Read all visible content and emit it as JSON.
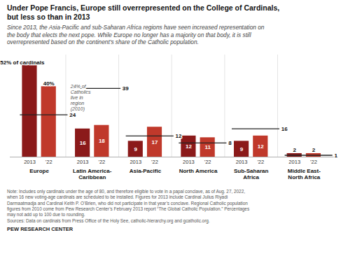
{
  "chart_data": {
    "type": "bar",
    "title": "Under Pope Francis, Europe still overrepresented on the College of Cardinals,\nbut less so than in 2013",
    "subtitle": "Since 2013, the Asia-Pacific and sub-Saharan Africa regions have seen increased representation on\nthe body that elects the next pope. While Europe no longer has a majority on that body, it is still\noverrepresented based on the continent’s share of the Catholic population.",
    "categories": [
      "Europe",
      "Latin America-\nCaribbean",
      "Asia-Pacific",
      "North America",
      "Sub-Saharan\nAfrica",
      "Middle East-\nNorth Africa"
    ],
    "series": [
      {
        "name": "2013",
        "color": "#8b1a1a",
        "values": [
          52,
          16,
          9,
          12,
          9,
          2
        ],
        "value_labels": [
          "52% of cardinals",
          "16",
          "9",
          "12",
          "9",
          "2"
        ]
      },
      {
        "name": "'22",
        "color": "#c0392b",
        "values": [
          40,
          18,
          17,
          11,
          12,
          2
        ],
        "value_labels": [
          "40%",
          "18",
          "17",
          "11",
          "12",
          "2"
        ]
      }
    ],
    "reference_lines": {
      "color": "#222222",
      "values": [
        24,
        39,
        12,
        8,
        16,
        1
      ]
    },
    "annotations": [
      {
        "category": "Europe",
        "text": "24% of\nCatholics\nlive in\nregion\n(2010)"
      }
    ],
    "note": "Note: Includes only cardinals under the age of 80, and therefore eligible to vote in a papal conclave, as of Aug. 27, 2022,\nwhen 16 new voting-age cardinals are scheduled to be installed. Figures for 2013 include Cardinal Julius Riyadi\nDarmaatmadja and Cardinal Keith P. O’Brien, who did not participate in that year’s conclave. Regional Catholic population\nfigures from 2010 come from Pew Research Center’s February 2013 report “The Global Catholic Population.” Percentages\nmay not add up to 100 due to rounding.\nSources: Data on cardinals from Press Office of the Holy See, catholic-hierarchy.org and gcatholic.org.",
    "source": "PEW RESEARCH CENTER",
    "ylim": [
      0,
      58
    ],
    "tick_labels": "x",
    "data_labels": true,
    "grid": false
  }
}
